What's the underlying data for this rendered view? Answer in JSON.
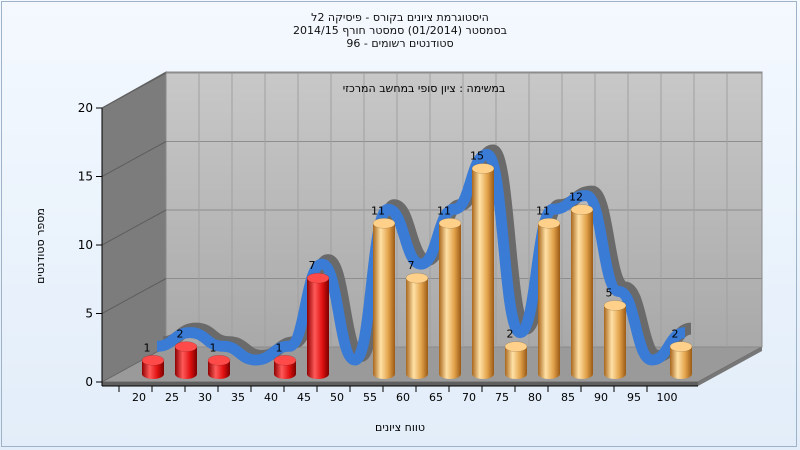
{
  "chart_data": {
    "type": "bar",
    "title_lines": [
      "היסטוגרמת ציונים בקורס - פיסיקה 2ל",
      "בסמסטר  (01/2014)  סמסטר חורף 2014/15",
      "סטודנטים רשומים - 96"
    ],
    "subtitle": "במשימה : ציון סופי במחשב המרכזי",
    "xlabel": "טווח ציונים",
    "ylabel": "מספר סטודנטים",
    "x_ticks": [
      "20",
      "25",
      "30",
      "35",
      "40",
      "45",
      "50",
      "55",
      "60",
      "65",
      "70",
      "75",
      "80",
      "85",
      "90",
      "95",
      "100"
    ],
    "y_ticks": [
      "0",
      "5",
      "10",
      "15",
      "20"
    ],
    "ylim": [
      0,
      20
    ],
    "grid": true,
    "bars": [
      {
        "x": 20,
        "value": 1,
        "color": "red"
      },
      {
        "x": 25,
        "value": 2,
        "color": "red"
      },
      {
        "x": 30,
        "value": 1,
        "color": "red"
      },
      {
        "x": 40,
        "value": 1,
        "color": "red"
      },
      {
        "x": 45,
        "value": 7,
        "color": "red"
      },
      {
        "x": 55,
        "value": 11,
        "color": "gold"
      },
      {
        "x": 60,
        "value": 7,
        "color": "gold"
      },
      {
        "x": 65,
        "value": 11,
        "color": "gold"
      },
      {
        "x": 70,
        "value": 15,
        "color": "gold"
      },
      {
        "x": 75,
        "value": 2,
        "color": "gold"
      },
      {
        "x": 80,
        "value": 11,
        "color": "gold"
      },
      {
        "x": 85,
        "value": 12,
        "color": "gold"
      },
      {
        "x": 90,
        "value": 5,
        "color": "gold"
      },
      {
        "x": 100,
        "value": 2,
        "color": "gold"
      }
    ],
    "trend_series": {
      "type": "line",
      "x": [
        20,
        25,
        30,
        35,
        40,
        45,
        50,
        55,
        60,
        65,
        70,
        75,
        80,
        85,
        90,
        95,
        100
      ],
      "values": [
        1,
        2,
        1,
        0,
        1,
        7,
        0,
        11,
        7,
        11,
        15,
        2,
        11,
        12,
        5,
        0,
        2
      ]
    },
    "colors": {
      "fail_bar": "#e81818",
      "pass_bar": "#e9a94a",
      "trend_front": "#3a7bd5",
      "trend_back": "#6a6a6a",
      "plot_back": "#b9b9b9",
      "plot_side": "#7c7c7c",
      "plot_floor": "#9a9a9a"
    }
  }
}
